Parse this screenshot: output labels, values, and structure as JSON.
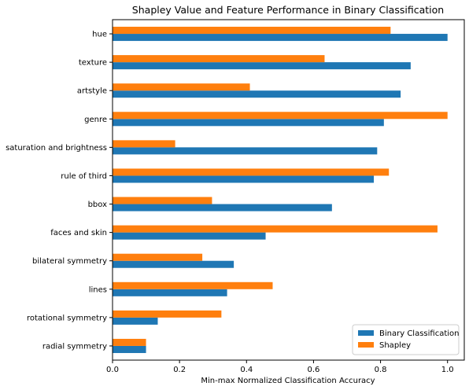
{
  "chart_data": {
    "type": "bar",
    "orientation": "horizontal",
    "title": "Shapley Value and Feature Performance in Binary Classification",
    "xlabel": "Min-max Normalized Classification Accuracy",
    "ylabel": "",
    "xlim": [
      0,
      1.05
    ],
    "xticks": [
      0,
      0.2,
      0.4,
      0.6,
      0.8,
      1
    ],
    "xtick_labels": [
      "0.0",
      "0.2",
      "0.4",
      "0.6",
      "0.8",
      "1.0"
    ],
    "grid": false,
    "legend_position": "lower-right",
    "categories": [
      "hue",
      "texture",
      "artstyle",
      "genre",
      "saturation and brightness",
      "rule of third",
      "bbox",
      "faces and skin",
      "bilateral symmetry",
      "lines",
      "rotational symmetry",
      "radial symmetry"
    ],
    "series": [
      {
        "name": "Binary Classification",
        "color": "#1f77b4",
        "values": [
          1.0,
          0.89,
          0.86,
          0.81,
          0.79,
          0.78,
          0.655,
          0.457,
          0.362,
          0.342,
          0.135,
          0.1
        ]
      },
      {
        "name": "Shapley",
        "color": "#ff7f0e",
        "values": [
          0.83,
          0.633,
          0.41,
          1.0,
          0.187,
          0.825,
          0.297,
          0.97,
          0.268,
          0.478,
          0.325,
          0.1
        ]
      }
    ]
  }
}
